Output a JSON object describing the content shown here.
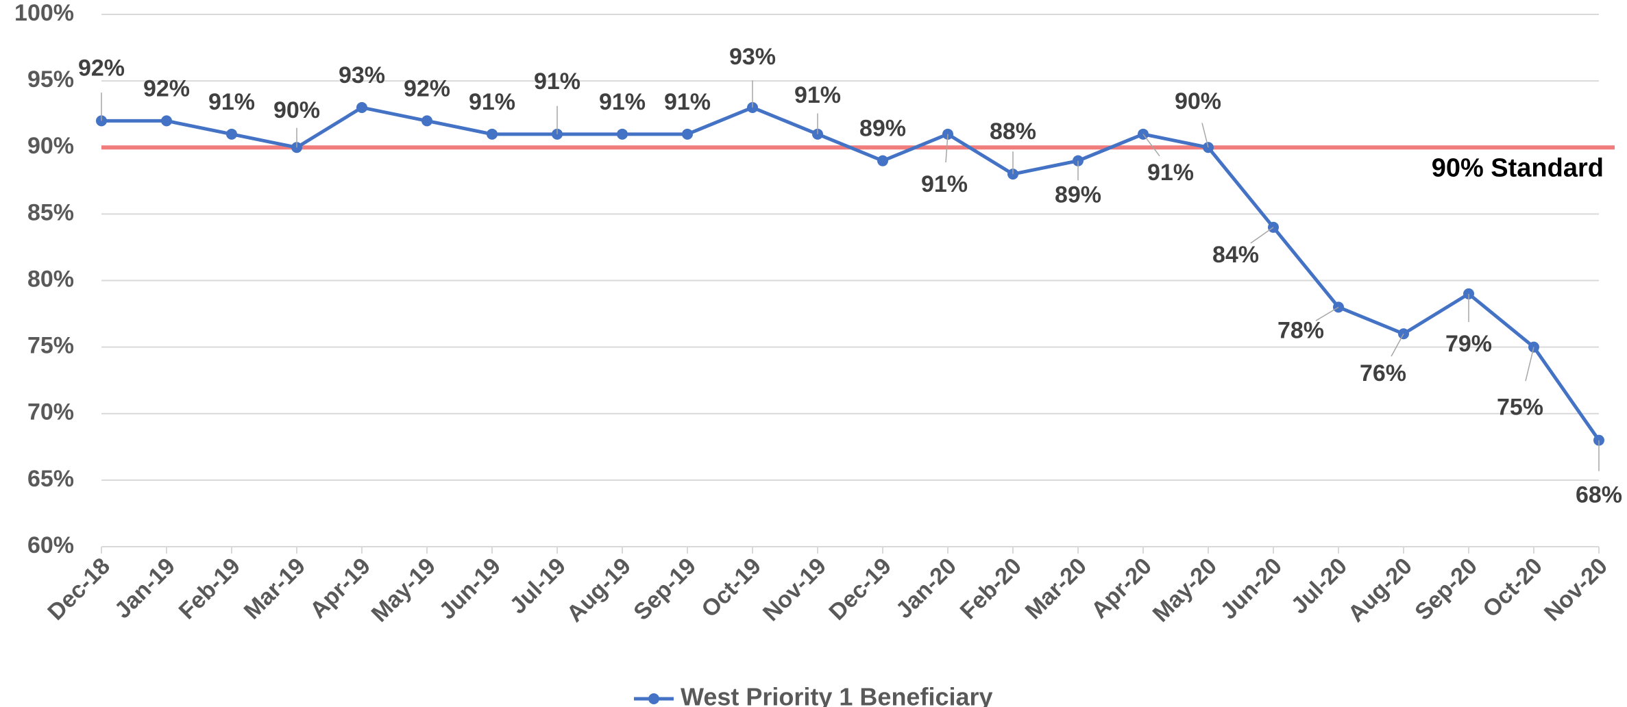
{
  "chart_data": {
    "type": "line",
    "categories": [
      "Dec-18",
      "Jan-19",
      "Feb-19",
      "Mar-19",
      "Apr-19",
      "May-19",
      "Jun-19",
      "Jul-19",
      "Aug-19",
      "Sep-19",
      "Oct-19",
      "Nov-19",
      "Dec-19",
      "Jan-20",
      "Feb-20",
      "Mar-20",
      "Apr-20",
      "May-20",
      "Jun-20",
      "Jul-20",
      "Aug-20",
      "Sep-20",
      "Oct-20",
      "Nov-20"
    ],
    "series": [
      {
        "name": "West Priority 1 Beneficiary",
        "color": "#4472c4",
        "values": [
          92,
          92,
          91,
          90,
          93,
          92,
          91,
          91,
          91,
          91,
          93,
          91,
          89,
          91,
          88,
          89,
          91,
          90,
          84,
          78,
          76,
          79,
          75,
          68
        ],
        "value_labels": [
          "92%",
          "92%",
          "91%",
          "90%",
          "93%",
          "92%",
          "91%",
          "91%",
          "91%",
          "91%",
          "93%",
          "91%",
          "89%",
          "91%",
          "88%",
          "89%",
          "91%",
          "90%",
          "84%",
          "78%",
          "76%",
          "79%",
          "75%",
          "68%"
        ]
      }
    ],
    "ylim": [
      60,
      100
    ],
    "yticks": [
      {
        "value": 60,
        "label": "60%"
      },
      {
        "value": 65,
        "label": "65%"
      },
      {
        "value": 70,
        "label": "70%"
      },
      {
        "value": 75,
        "label": "75%"
      },
      {
        "value": 80,
        "label": "80%"
      },
      {
        "value": 85,
        "label": "85%"
      },
      {
        "value": 90,
        "label": "90%"
      },
      {
        "value": 95,
        "label": "95%"
      },
      {
        "value": 100,
        "label": "100%"
      }
    ],
    "grid": true,
    "reference_line": {
      "value": 90,
      "label": "90% Standard",
      "color": "#f07c7c"
    },
    "legend": "bottom"
  }
}
